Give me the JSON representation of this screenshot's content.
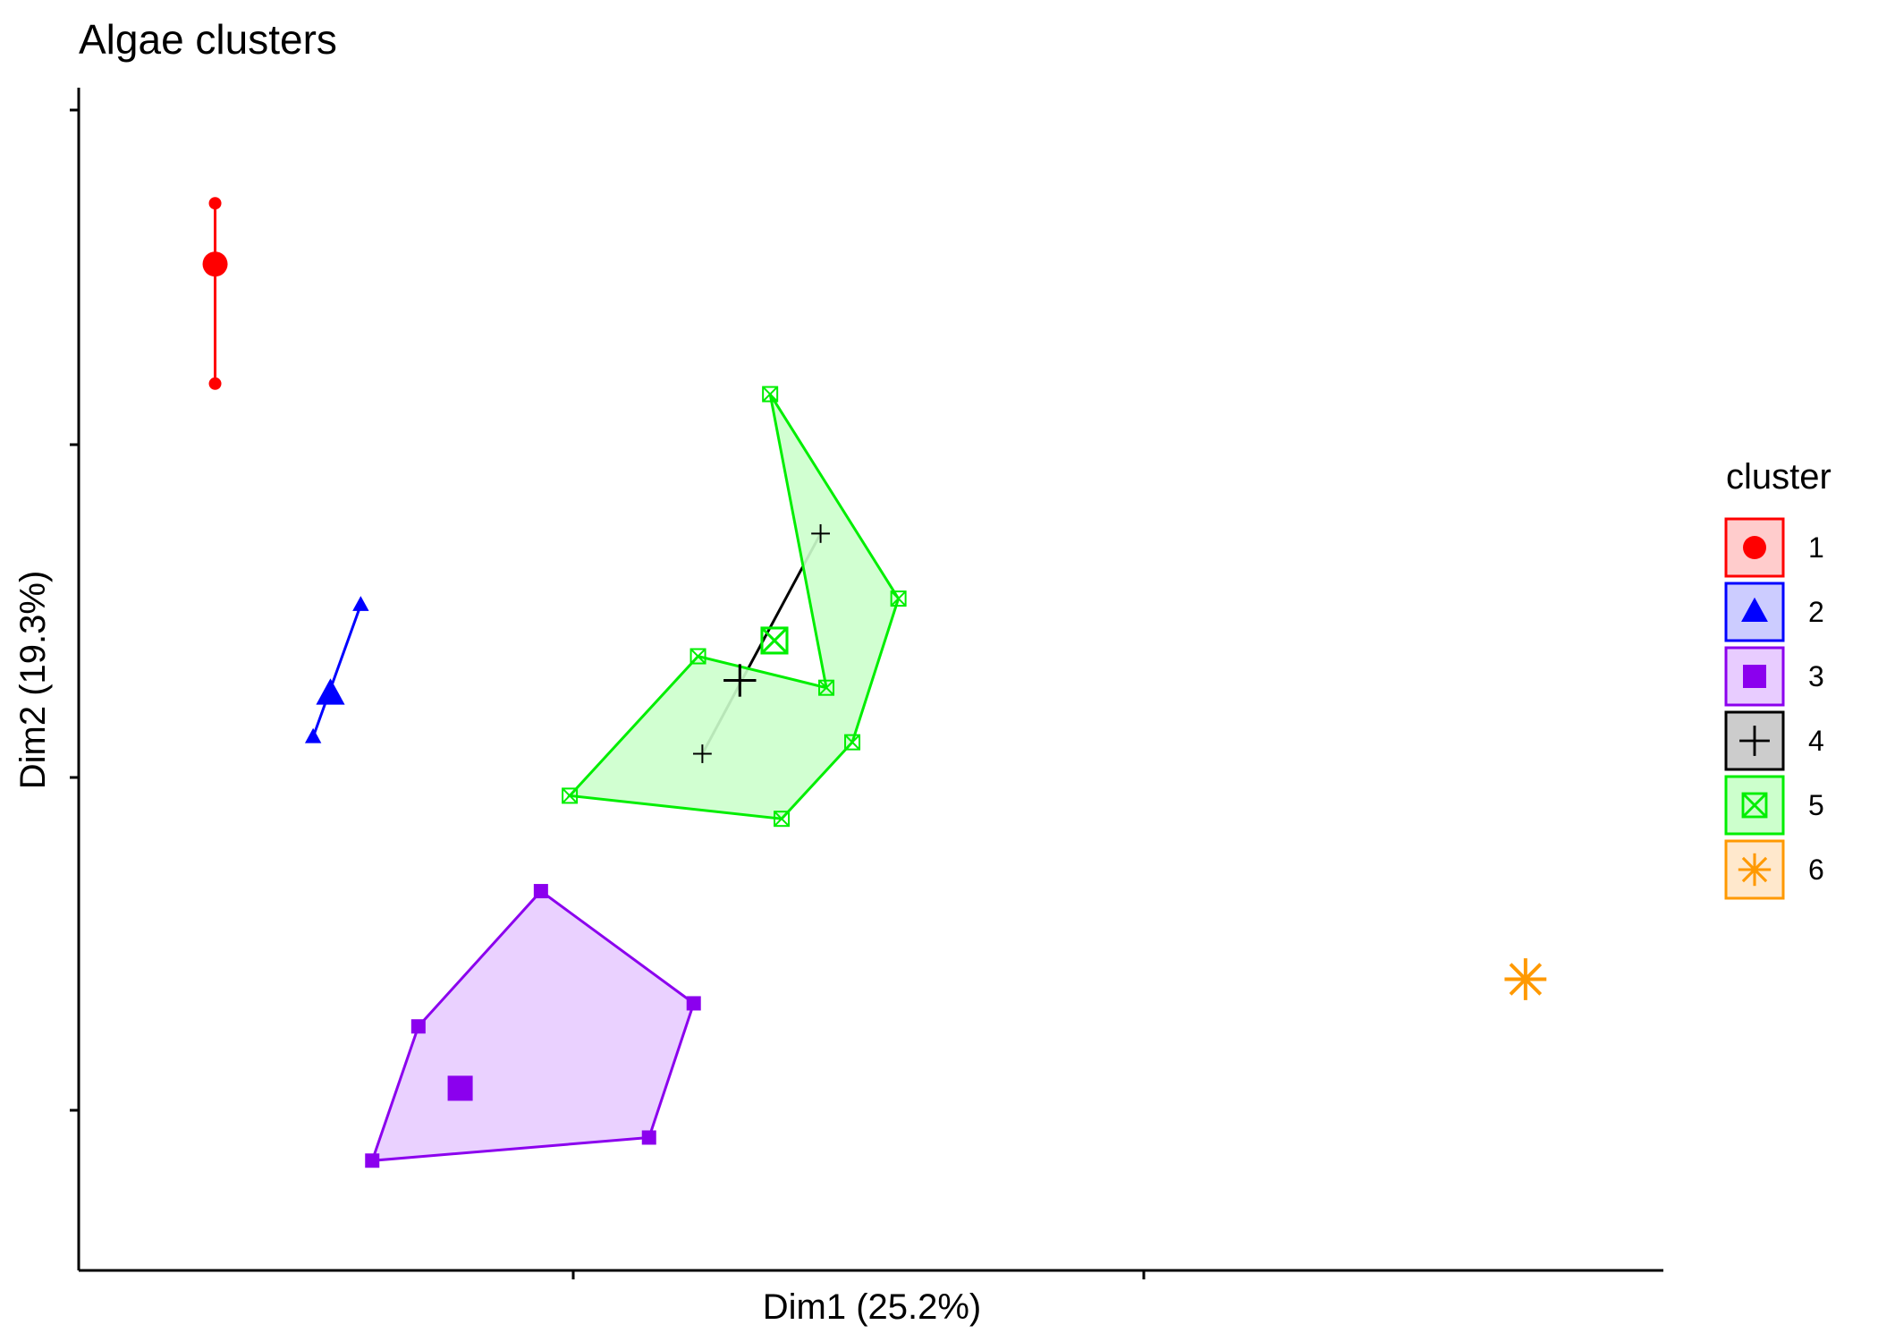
{
  "chart_data": {
    "type": "scatter",
    "title": "Algae clusters",
    "xlabel": "Dim1 (25.2%)",
    "ylabel": "Dim2 (19.3%)",
    "xlim": [
      0,
      100
    ],
    "ylim": [
      0,
      100
    ],
    "grid": false,
    "legend": {
      "title": "cluster",
      "placement": "right"
    },
    "series": [
      {
        "name": "1",
        "shape": "circle",
        "color": "#ff0000",
        "fill": "#ffcccc",
        "hull": "line",
        "points": [
          [
            4.5,
            95.8
          ],
          [
            4.5,
            78.6
          ]
        ],
        "centroid": [
          4.5,
          90.0
        ]
      },
      {
        "name": "2",
        "shape": "triangle",
        "color": "#0000ff",
        "fill": "#ccccff",
        "hull": "line",
        "points": [
          [
            14.6,
            57.5
          ],
          [
            11.3,
            44.9
          ]
        ],
        "centroid": [
          12.5,
          49.0
        ]
      },
      {
        "name": "3",
        "shape": "square",
        "color": "#8b00ee",
        "fill": "#e8ccff",
        "hull": "polygon",
        "points": [
          [
            27.1,
            30.2
          ],
          [
            18.6,
            17.3
          ],
          [
            15.4,
            4.5
          ],
          [
            34.6,
            6.7
          ],
          [
            37.7,
            19.5
          ]
        ],
        "centroid": [
          21.5,
          11.4
        ]
      },
      {
        "name": "4",
        "shape": "plus",
        "color": "#000000",
        "fill": "#cccccc",
        "hull": "line",
        "points": [
          [
            46.5,
            64.3
          ],
          [
            38.3,
            43.3
          ]
        ],
        "centroid": [
          40.9,
          50.3
        ]
      },
      {
        "name": "5",
        "shape": "square-cross",
        "color": "#00ee00",
        "fill": "#ccffcc",
        "hull": "polygon",
        "points": [
          [
            43.0,
            77.6
          ],
          [
            51.9,
            58.1
          ],
          [
            48.7,
            44.4
          ],
          [
            43.8,
            37.1
          ],
          [
            29.1,
            39.3
          ],
          [
            38.0,
            52.6
          ],
          [
            46.9,
            49.6
          ]
        ],
        "centroid": [
          43.3,
          54.1
        ]
      },
      {
        "name": "6",
        "shape": "asterisk",
        "color": "#ff9900",
        "fill": "#ffe8cc",
        "hull": "none",
        "points": [],
        "centroid": [
          95.4,
          21.8
        ]
      }
    ]
  }
}
